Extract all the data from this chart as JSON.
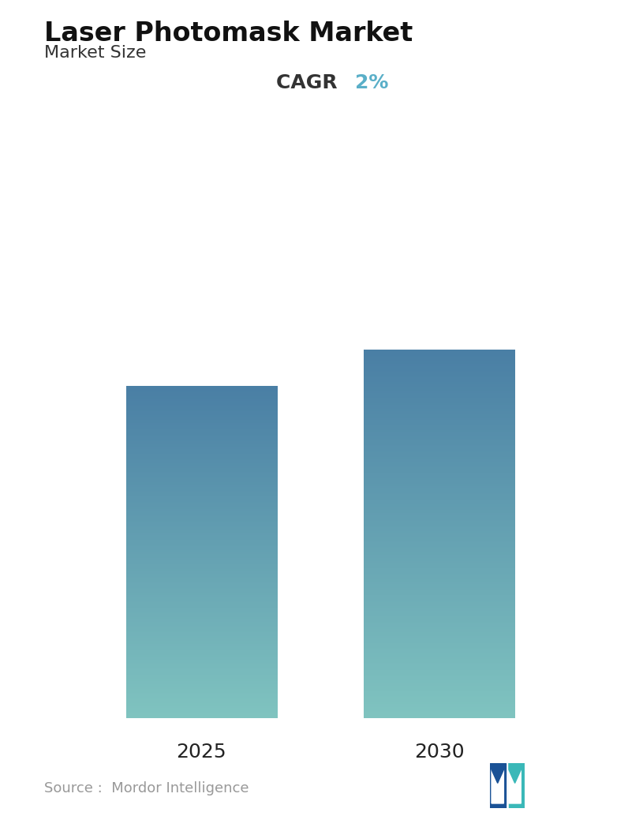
{
  "title": "Laser Photomask Market",
  "subtitle": "Market Size",
  "cagr_label": "CAGR ",
  "cagr_value": "2%",
  "cagr_color": "#5aafc8",
  "categories": [
    "2025",
    "2030"
  ],
  "values": [
    0.74,
    0.82
  ],
  "bar_top_color": "#4a7fa5",
  "bar_bottom_color": "#80c4c0",
  "background_color": "#ffffff",
  "title_fontsize": 24,
  "subtitle_fontsize": 16,
  "cagr_fontsize": 18,
  "tick_fontsize": 18,
  "source_text": "Source :  Mordor Intelligence",
  "source_color": "#999999",
  "source_fontsize": 13,
  "bar_width": 0.28,
  "positions": [
    0.28,
    0.72
  ],
  "xlim": [
    0,
    1.0
  ],
  "ylim": [
    0,
    1.0
  ]
}
